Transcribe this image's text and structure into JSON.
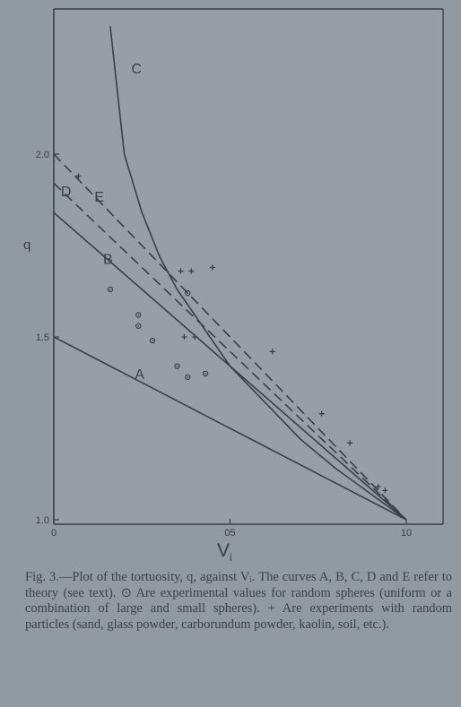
{
  "chart_data": {
    "type": "line",
    "xlabel": "V",
    "xlabel_subscript": "i",
    "ylabel": "q",
    "xlim": [
      0,
      1.0
    ],
    "ylim": [
      1.0,
      2.0
    ],
    "x_ticks": [
      {
        "value": 0,
        "label": "0"
      },
      {
        "value": 0.5,
        "label": "05"
      },
      {
        "value": 1.0,
        "label": "10"
      }
    ],
    "y_ticks": [
      {
        "value": 1.0,
        "label": "1.0"
      },
      {
        "value": 1.5,
        "label": "1.5"
      },
      {
        "value": 2.0,
        "label": "2.0"
      }
    ],
    "series": [
      {
        "name": "A",
        "style": "solid",
        "points": [
          [
            0,
            1.5
          ],
          [
            1.0,
            1.0
          ]
        ],
        "label_at": [
          0.23,
          1.385
        ]
      },
      {
        "name": "B",
        "style": "solid",
        "points": [
          [
            0,
            1.84
          ],
          [
            1.0,
            1.0
          ]
        ],
        "label_at": [
          0.14,
          1.7
        ]
      },
      {
        "name": "C",
        "style": "solid",
        "points": [
          [
            0.16,
            2.35
          ],
          [
            0.2,
            2.0
          ],
          [
            0.25,
            1.84
          ],
          [
            0.3,
            1.72
          ],
          [
            0.35,
            1.63
          ],
          [
            0.4,
            1.56
          ],
          [
            0.45,
            1.49
          ],
          [
            0.5,
            1.42
          ],
          [
            0.6,
            1.32
          ],
          [
            0.7,
            1.22
          ],
          [
            0.8,
            1.14
          ],
          [
            0.9,
            1.07
          ],
          [
            1.0,
            1.0
          ]
        ],
        "label_at": [
          0.22,
          2.22
        ]
      },
      {
        "name": "D",
        "style": "dashed",
        "points": [
          [
            0,
            1.92
          ],
          [
            1.0,
            1.0
          ]
        ],
        "label_at": [
          0.02,
          1.885
        ]
      },
      {
        "name": "E",
        "style": "dashed",
        "points": [
          [
            0,
            2.0
          ],
          [
            1.0,
            1.0
          ]
        ],
        "label_at": [
          0.115,
          1.87
        ]
      }
    ],
    "circles": [
      [
        0.16,
        1.63
      ],
      [
        0.24,
        1.56
      ],
      [
        0.24,
        1.53
      ],
      [
        0.28,
        1.49
      ],
      [
        0.35,
        1.42
      ],
      [
        0.38,
        1.39
      ],
      [
        0.43,
        1.4
      ],
      [
        0.38,
        1.62
      ]
    ],
    "crosses": [
      [
        0.07,
        1.94
      ],
      [
        0.36,
        1.68
      ],
      [
        0.39,
        1.68
      ],
      [
        0.45,
        1.69
      ],
      [
        0.37,
        1.5
      ],
      [
        0.4,
        1.5
      ],
      [
        0.62,
        1.46
      ],
      [
        0.76,
        1.29
      ],
      [
        0.84,
        1.21
      ],
      [
        0.92,
        1.09
      ],
      [
        0.94,
        1.08
      ]
    ]
  },
  "caption": {
    "text": "Fig. 3.—Plot of the tortuosity, q, against Vᵢ. The curves A, B, C, D and E refer to theory (see text). ⊙ Are experimental values for random spheres (uniform or a combination of large and small spheres). + Are experiments with random particles (sand, glass powder, carborundum powder, kaolin, soil, etc.)."
  },
  "colors": {
    "background": "#8f9aa2",
    "plot_area": "#979fa6",
    "ink": "#3a3f44"
  }
}
